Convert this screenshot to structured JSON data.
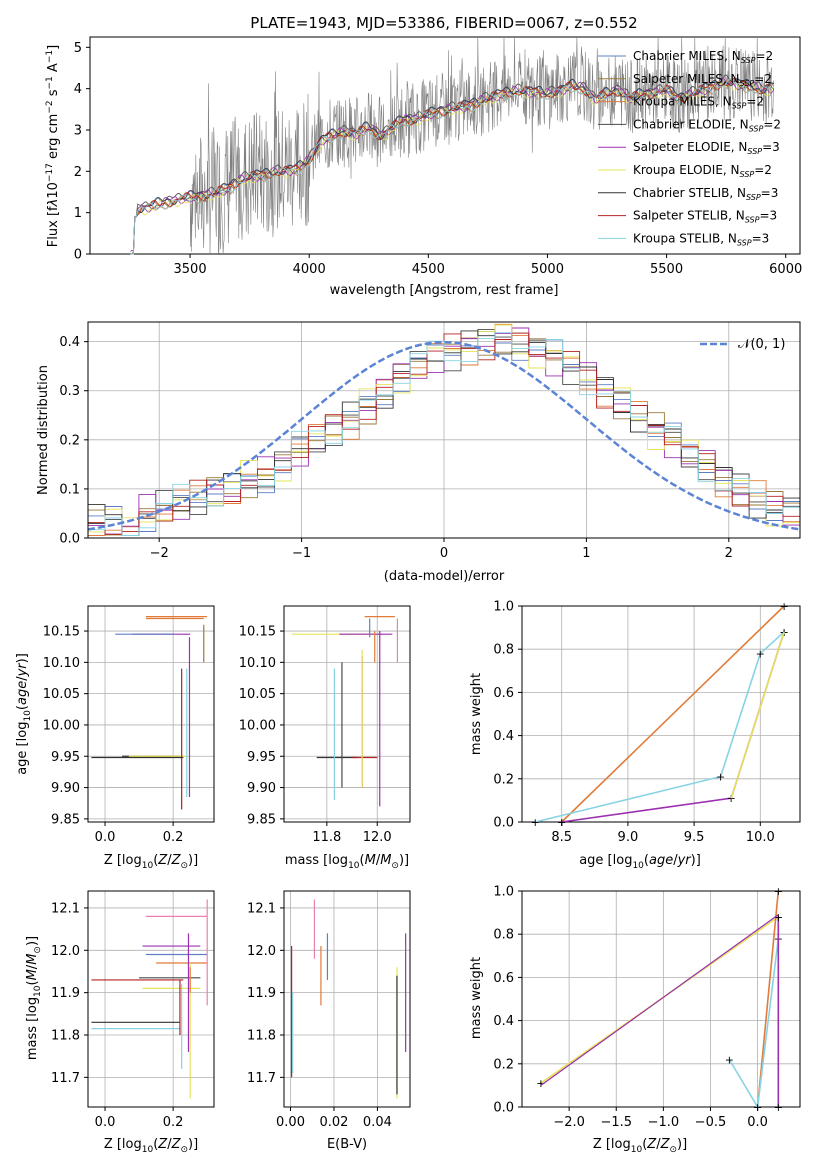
{
  "title": "PLATE=1943, MJD=53386, FIBERID=0067, z=0.552",
  "colors": {
    "chabrier_miles": "#5f7fc5",
    "salpeter_miles": "#9a7a3a",
    "kroupa_miles": "#e07b39",
    "chabrier_elodie": "#4a4a4a",
    "salpeter_elodie": "#9b30b0",
    "kroupa_elodie": "#e6e35a",
    "chabrier_stelib": "#333333",
    "salpeter_stelib": "#b52020",
    "kroupa_stelib": "#88d3e3",
    "observed": "#808080",
    "normal": "#5b84d6"
  },
  "chart_data": [
    {
      "type": "line",
      "panel": "spectrum",
      "title": "PLATE=1943, MJD=53386, FIBERID=0067, z=0.552",
      "xlabel": "wavelength [Angstrom, rest frame]",
      "ylabel": "Flux [f_λ 10^-17 erg cm^-2 s^-1 A^-1]",
      "xlim": [
        3080,
        6060
      ],
      "ylim": [
        0,
        5.25
      ],
      "xticks": [
        3500,
        4000,
        4500,
        5000,
        5500,
        6000
      ],
      "yticks": [
        0,
        1,
        2,
        3,
        4,
        5
      ],
      "grid": false,
      "legend_position": "top-right",
      "legend": [
        "Chabrier MILES, N_SSP=2",
        "Salpeter MILES, N_SSP=2",
        "Kroupa MILES, N_SSP=2",
        "Chabrier ELODIE, N_SSP=2",
        "Salpeter ELODIE, N_SSP=3",
        "Kroupa ELODIE, N_SSP=2",
        "Chabrier STELIB, N_SSP=3",
        "Salpeter STELIB, N_SSP=3",
        "Kroupa STELIB, N_SSP=3"
      ],
      "model_continuum": {
        "x": [
          3250,
          3270,
          3300,
          3350,
          3400,
          3450,
          3500,
          3550,
          3600,
          3650,
          3700,
          3750,
          3800,
          3850,
          3900,
          3950,
          4000,
          4050,
          4100,
          4150,
          4200,
          4250,
          4300,
          4350,
          4400,
          4450,
          4500,
          4550,
          4600,
          4650,
          4700,
          4750,
          4800,
          4850,
          4900,
          4950,
          5000,
          5050,
          5100,
          5150,
          5200,
          5250,
          5300,
          5350,
          5400,
          5450,
          5500,
          5550,
          5600,
          5650,
          5700,
          5750,
          5800,
          5850,
          5900,
          5950
        ],
        "y": [
          0.9,
          1.1,
          1.15,
          1.2,
          1.3,
          1.35,
          1.4,
          1.45,
          1.5,
          1.6,
          1.8,
          1.9,
          1.95,
          2.0,
          2.05,
          2.1,
          2.3,
          2.8,
          2.9,
          3.0,
          2.95,
          3.1,
          2.9,
          3.1,
          3.3,
          3.3,
          3.4,
          3.5,
          3.55,
          3.6,
          3.7,
          3.8,
          3.9,
          3.95,
          4.0,
          3.95,
          3.9,
          4.0,
          4.1,
          4.05,
          3.8,
          3.9,
          4.0,
          3.8,
          3.9,
          3.95,
          4.0,
          3.8,
          3.9,
          4.0,
          4.1,
          4.2,
          4.15,
          4.1,
          4.0,
          4.1
        ]
      }
    },
    {
      "type": "line",
      "panel": "residuals",
      "xlabel": "(data-model)/error",
      "ylabel": "Normed distribution",
      "xlim": [
        -2.5,
        2.5
      ],
      "ylim": [
        0,
        0.44
      ],
      "xticks": [
        -2,
        -1,
        0,
        1,
        2
      ],
      "yticks": [
        0.0,
        0.1,
        0.2,
        0.3,
        0.4
      ],
      "grid": true,
      "legend_position": "top-right",
      "legend": [
        "𝒩(0, 1)"
      ],
      "series": [
        {
          "name": "𝒩(0, 1)",
          "function": "normal",
          "mean": 0,
          "sigma": 1
        },
        {
          "values": [
            0.03,
            0.03,
            0.01,
            0.05,
            0.06,
            0.07,
            0.08,
            0.09,
            0.1,
            0.12,
            0.13,
            0.15,
            0.18,
            0.2,
            0.22,
            0.24,
            0.27,
            0.3,
            0.33,
            0.35,
            0.37,
            0.38,
            0.39,
            0.4,
            0.41,
            0.4,
            0.38,
            0.37,
            0.35,
            0.33,
            0.3,
            0.28,
            0.25,
            0.22,
            0.2,
            0.17,
            0.15,
            0.12,
            0.1,
            0.08,
            0.06,
            0.05
          ]
        }
      ]
    },
    {
      "type": "scatter",
      "panel": "age_vs_Z",
      "xlabel": "Z [log10(Z/Z⊙)]",
      "ylabel": "age [log10(age/yr)]",
      "xlim": [
        -0.05,
        0.32
      ],
      "ylim": [
        9.845,
        10.19
      ],
      "xticks": [
        0.0,
        0.2
      ],
      "yticks": [
        9.85,
        9.9,
        9.95,
        10.0,
        10.05,
        10.1,
        10.15
      ],
      "grid": true
    },
    {
      "type": "scatter",
      "panel": "age_vs_mass",
      "xlabel": "mass [log10(M/M⊙)]",
      "ylabel": "",
      "xlim": [
        11.63,
        12.13
      ],
      "ylim": [
        9.845,
        10.19
      ],
      "xticks": [
        11.8,
        12.0
      ],
      "yticks": [
        9.85,
        9.9,
        9.95,
        10.0,
        10.05,
        10.1,
        10.15
      ],
      "grid": true
    },
    {
      "type": "line",
      "panel": "mass_weight_vs_age",
      "xlabel": "age [log10(age/yr)]",
      "ylabel": "mass weight",
      "xlim": [
        8.2,
        10.3
      ],
      "ylim": [
        0,
        1.0
      ],
      "xticks": [
        8.5,
        9.0,
        9.5,
        10.0
      ],
      "yticks": [
        0.0,
        0.2,
        0.4,
        0.6,
        0.8,
        1.0
      ],
      "grid": true,
      "series": [
        {
          "x": [
            8.5,
            10.18
          ],
          "y": [
            0.0,
            1.0
          ]
        },
        {
          "x": [
            8.3,
            9.7,
            10.0,
            10.18
          ],
          "y": [
            0.0,
            0.21,
            0.78,
            0.88
          ]
        },
        {
          "x": [
            8.5,
            9.78,
            10.18
          ],
          "y": [
            0.0,
            0.11,
            0.88
          ]
        }
      ]
    },
    {
      "type": "scatter",
      "panel": "mass_vs_Z",
      "xlabel": "Z [log10(Z/Z⊙)]",
      "ylabel": "mass [log10(M/M⊙)]",
      "xlim": [
        -0.05,
        0.32
      ],
      "ylim": [
        11.63,
        12.14
      ],
      "xticks": [
        0.0,
        0.2
      ],
      "yticks": [
        11.7,
        11.8,
        11.9,
        12.0,
        12.1
      ],
      "grid": true
    },
    {
      "type": "scatter",
      "panel": "mass_vs_EBV",
      "xlabel": "E(B-V)",
      "ylabel": "",
      "xlim": [
        -0.003,
        0.055
      ],
      "ylim": [
        11.63,
        12.14
      ],
      "xticks": [
        0.0,
        0.02,
        0.04
      ],
      "yticks": [
        11.7,
        11.8,
        11.9,
        12.0,
        12.1
      ],
      "grid": true
    },
    {
      "type": "line",
      "panel": "mass_weight_vs_Z",
      "xlabel": "Z [log10(Z/Z⊙)]",
      "ylabel": "mass weight",
      "xlim": [
        -2.5,
        0.45
      ],
      "ylim": [
        0,
        1.0
      ],
      "xticks": [
        -2.0,
        -1.5,
        -1.0,
        -0.5,
        0.0
      ],
      "yticks": [
        0.0,
        0.2,
        0.4,
        0.6,
        0.8,
        1.0
      ],
      "grid": true,
      "series": [
        {
          "x": [
            -2.3,
            0.22
          ],
          "y": [
            0.11,
            0.88
          ]
        },
        {
          "x": [
            0.0,
            0.22
          ],
          "y": [
            0.0,
            1.0
          ]
        },
        {
          "x": [
            -0.3,
            0.0,
            0.22
          ],
          "y": [
            0.22,
            0.0,
            0.78
          ]
        },
        {
          "x": [
            0.22,
            0.22
          ],
          "y": [
            0.0,
            0.88
          ]
        }
      ]
    }
  ],
  "text": {
    "spec_xlabel": "wavelength [Angstrom, rest frame]",
    "hist_xlabel": "(data-model)/error",
    "hist_ylabel": "Normed distribution",
    "mw_ylabel": "mass weight",
    "age_xlabel": "age  [log",
    "ebv_xlabel": "E(B-V)"
  }
}
